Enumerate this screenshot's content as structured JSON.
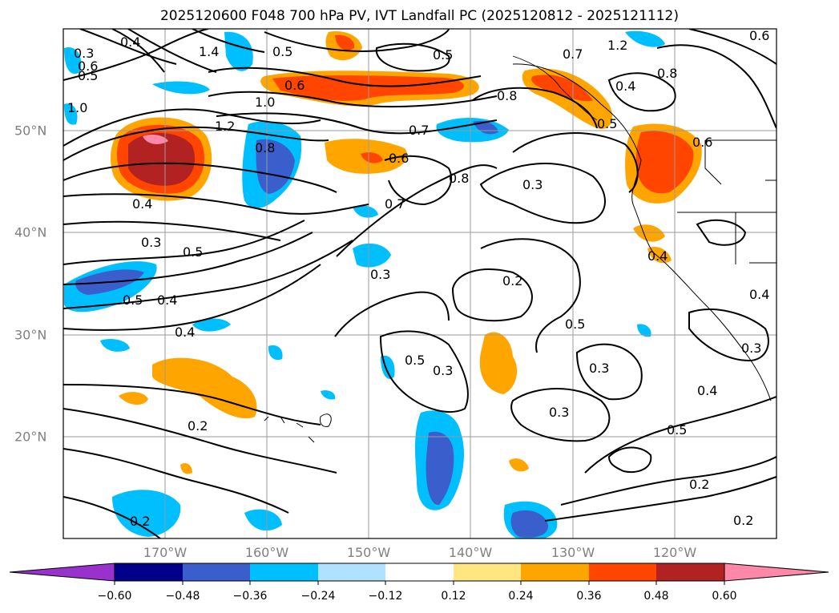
{
  "title": "2025120600 F048 700 hPa PV, IVT Landfall PC (2025120812 - 2025121112)",
  "axes": {
    "lon_labels": [
      "170°W",
      "160°W",
      "150°W",
      "140°W",
      "130°W",
      "120°W"
    ],
    "lat_labels": [
      "50°N",
      "40°N",
      "30°N",
      "20°N"
    ],
    "lon_range": [
      -180,
      -110
    ],
    "lat_range": [
      10,
      60
    ],
    "grid": true
  },
  "colorbar": {
    "ticks": [
      "−0.60",
      "−0.48",
      "−0.36",
      "−0.24",
      "−0.12",
      "0.12",
      "0.24",
      "0.36",
      "0.48",
      "0.60"
    ],
    "colors": [
      "#9932cc",
      "#00008b",
      "#3a5fcd",
      "#00bfff",
      "#b0e2ff",
      "#ffffff",
      "#ffe680",
      "#ffa500",
      "#ff4500",
      "#b22222",
      "#ff88aa"
    ],
    "extend": "both"
  },
  "contour_labels": [
    "0.3",
    "0.4",
    "0.5",
    "0.6",
    "1.0",
    "1.4",
    "0.5",
    "0.6",
    "1.0",
    "1.2",
    "1.2",
    "0.8",
    "0.5",
    "0.7",
    "0.8",
    "0.4",
    "0.6",
    "0.7",
    "0.5",
    "0.8",
    "0.6",
    "0.6",
    "0.8",
    "0.3",
    "0.7",
    "0.4",
    "0.3",
    "0.5",
    "0.5",
    "0.4",
    "0.4",
    "0.3",
    "0.2",
    "0.5",
    "0.4",
    "0.5",
    "0.3",
    "0.4",
    "0.3",
    "0.3",
    "0.4",
    "0.2",
    "0.3",
    "0.5",
    "0.2",
    "0.2",
    "0.2"
  ]
}
